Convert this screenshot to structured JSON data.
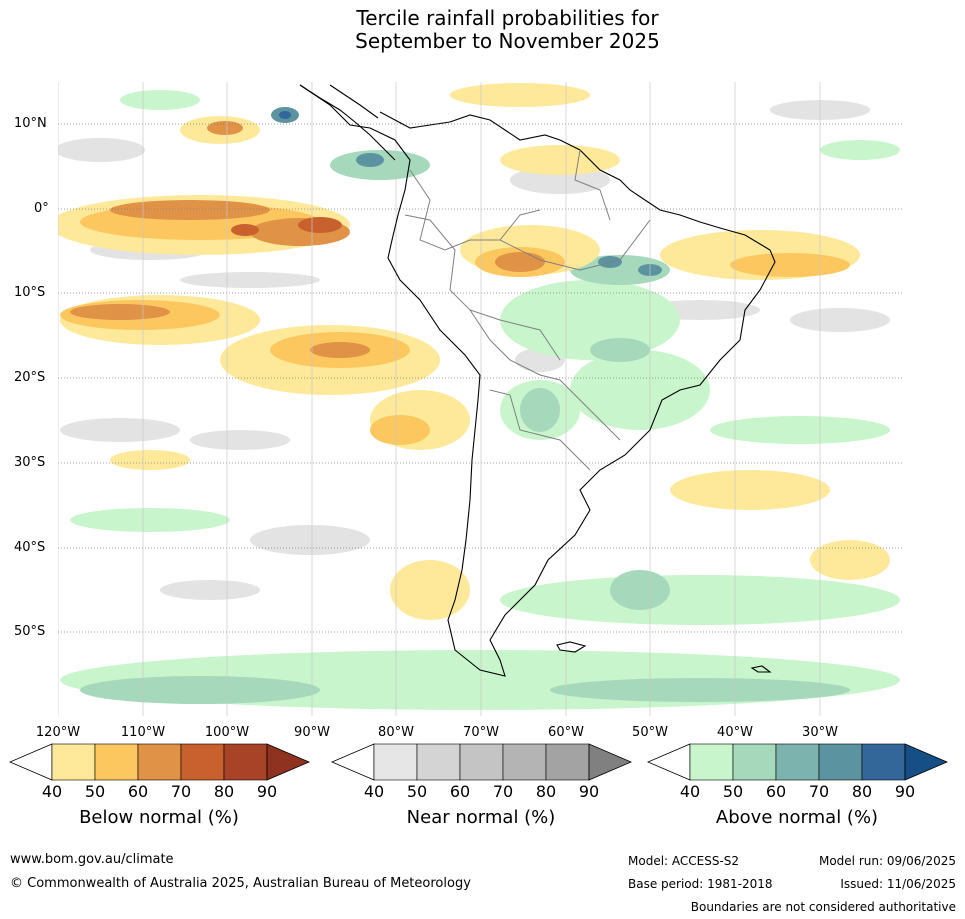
{
  "title_line1": "Tercile rainfall probabilities for",
  "title_line2": "September to November 2025",
  "map": {
    "lat_labels": [
      "10°N",
      "0°",
      "10°S",
      "20°S",
      "30°S",
      "40°S",
      "50°S"
    ],
    "lon_labels": [
      "120°W",
      "110°W",
      "100°W",
      "90°W",
      "80°W",
      "70°W",
      "60°W",
      "50°W",
      "40°W",
      "30°W"
    ],
    "below_color": "#fdb94a",
    "near_color": "#d4d4d4",
    "above_color": "#a8dbb9",
    "coastline_color": "#000000",
    "borders_color": "#808080"
  },
  "colorbars": [
    {
      "title": "Below normal (%)",
      "ticks": [
        "40",
        "50",
        "60",
        "70",
        "80",
        "90"
      ],
      "colors": [
        "#ffffff",
        "#fee99a",
        "#fdc75f",
        "#e09246",
        "#c9612f",
        "#a94328",
        "#8f3220"
      ]
    },
    {
      "title": "Near normal (%)",
      "ticks": [
        "40",
        "50",
        "60",
        "70",
        "80",
        "90"
      ],
      "colors": [
        "#ffffff",
        "#e6e6e6",
        "#d4d4d4",
        "#c4c4c4",
        "#b4b4b4",
        "#a3a3a3",
        "#808080"
      ]
    },
    {
      "title": "Above normal (%)",
      "ticks": [
        "40",
        "50",
        "60",
        "70",
        "80",
        "90"
      ],
      "colors": [
        "#ffffff",
        "#c8f5cb",
        "#a6d8bc",
        "#7db3ae",
        "#5b93a0",
        "#33679a",
        "#164e86"
      ]
    }
  ],
  "footer": {
    "website": "www.bom.gov.au/climate",
    "copyright": "© Commonwealth of Australia 2025, Australian Bureau of Meteorology",
    "model": "Model: ACCESS-S2",
    "base_period": "Base period: 1981-2018",
    "model_run": "Model run: 09/06/2025",
    "issued": "Issued: 11/06/2025",
    "disclaimer": "Boundaries are not considered authoritative"
  }
}
